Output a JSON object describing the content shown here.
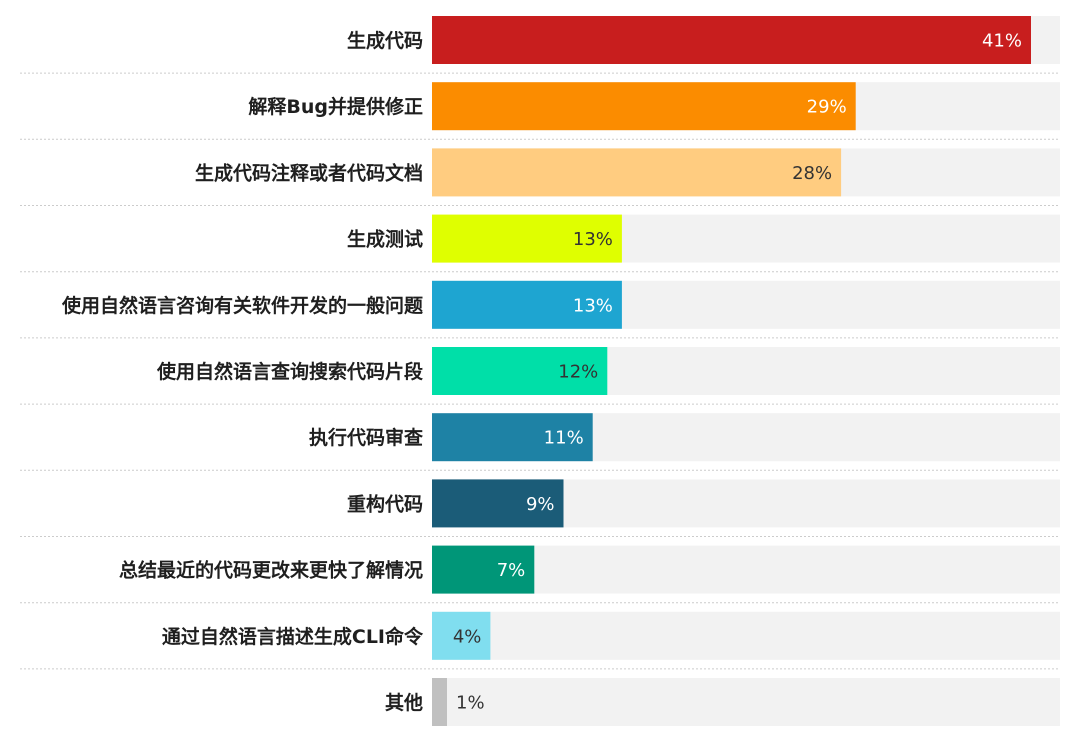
{
  "chart_data": {
    "type": "bar",
    "orientation": "horizontal",
    "categories": [
      "生成代码",
      "解释Bug并提供修正",
      "生成代码注释或者代码文档",
      "生成测试",
      "使用自然语言咨询有关软件开发的一般问题",
      "使用自然语言查询搜索代码片段",
      "执行代码审查",
      "重构代码",
      "总结最近的代码更改来更快了解情况",
      "通过自然语言描述生成CLI命令",
      "其他"
    ],
    "values": [
      41,
      29,
      28,
      13,
      13,
      12,
      11,
      9,
      7,
      4,
      1
    ],
    "value_labels": [
      "41%",
      "29%",
      "28%",
      "13%",
      "13%",
      "12%",
      "11%",
      "9%",
      "7%",
      "4%",
      "1%"
    ],
    "unit": "%",
    "xlim": [
      0,
      100
    ],
    "bar_colors": [
      "#c81e1e",
      "#fb8c00",
      "#ffcc80",
      "#dfff00",
      "#1ea5d1",
      "#00dfa8",
      "#1e82a5",
      "#1b5c78",
      "#009678",
      "#80deef",
      "#c0c0c0"
    ],
    "label_colors": [
      "#ffffff",
      "#ffffff",
      "#333333",
      "#333333",
      "#ffffff",
      "#333333",
      "#ffffff",
      "#ffffff",
      "#ffffff",
      "#333333",
      "#333333"
    ],
    "track_color": "#f2f2f2",
    "separator_color": "#cccccc",
    "grid": false,
    "legend": "none"
  }
}
